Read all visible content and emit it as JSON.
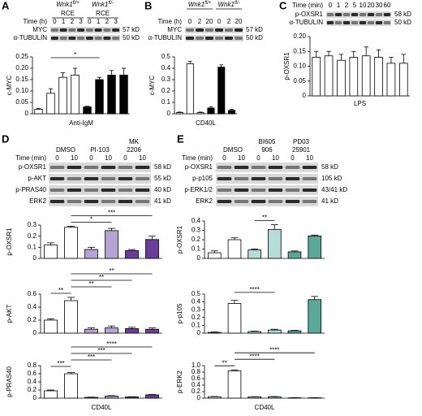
{
  "blots": [
    {
      "letter": "A",
      "genotypes": [
        {
          "gene": "Wnk1",
          "allele": "fl/+"
        },
        {
          "gene": "Wnk1",
          "allele": "fl/-"
        }
      ],
      "rce": [
        "RCE",
        "RCE"
      ],
      "time_label": "Time (h)",
      "times": [
        0,
        1,
        2,
        3,
        0,
        1,
        2,
        3
      ],
      "rows": [
        {
          "name": "MYC",
          "size": "57 kD"
        },
        {
          "name": "α-TUBULIN",
          "size": "50 kD"
        }
      ]
    },
    {
      "letter": "B",
      "genotypes": [
        {
          "gene": "Wnk1",
          "allele": "fl/+"
        },
        {
          "gene": "Wnk1",
          "allele": "fl/-"
        }
      ],
      "time_label": "Time (h)",
      "times": [
        0,
        2,
        20,
        0,
        2,
        20
      ],
      "rows": [
        {
          "name": "MYC",
          "size": "57 kD"
        },
        {
          "name": "α-TUBULIN",
          "size": "50 kD"
        }
      ]
    },
    {
      "letter": "C",
      "time_label": "Time (min)",
      "times": [
        0,
        1,
        2,
        5,
        10,
        20,
        30,
        60
      ],
      "rows": [
        {
          "name": "p-OXSR1",
          "size": "58 kD"
        },
        {
          "name": "α-TUBULIN",
          "size": "50 kD"
        }
      ]
    },
    {
      "letter": "D",
      "treatments": [
        [
          "DMSO"
        ],
        [
          "PI-103"
        ],
        [
          "MK",
          "2206"
        ]
      ],
      "time_label": "Time (min)",
      "times": [
        0,
        10,
        0,
        10,
        0,
        10
      ],
      "rows": [
        {
          "name": "p-OXSR1",
          "size": "58 kD"
        },
        {
          "name": "p-AKT",
          "size": "55 kD"
        },
        {
          "name": "p-PRAS40",
          "size": "40 kD"
        },
        {
          "name": "ERK2",
          "size": "41 kD"
        }
      ]
    },
    {
      "letter": "E",
      "treatments": [
        [
          "DMSO"
        ],
        [
          "BI605",
          "906"
        ],
        [
          "PD03",
          "25901"
        ]
      ],
      "time_label": "Time (min)",
      "times": [
        0,
        10,
        0,
        10,
        0,
        10
      ],
      "rows": [
        {
          "name": "p-OXSR1",
          "size": "58 kD"
        },
        {
          "name": "p-p105",
          "size": "105 kD"
        },
        {
          "name": "p-ERK1/2",
          "size": "43/41 kD"
        },
        {
          "name": "ERK2",
          "size": "41 kD"
        }
      ]
    }
  ],
  "chart_data": [
    {
      "type": "bar",
      "ylabel": "c-MYC",
      "xlabel": "Anti-IgM",
      "ylim": [
        0,
        0.25
      ],
      "yticks": [
        0,
        0.05,
        {
          "value": 0.1,
          "label": "0.10"
        },
        0.15,
        {
          "value": 0.2,
          "label": "0.20"
        },
        0.25
      ],
      "values": [
        0.02,
        0.09,
        0.16,
        0.17,
        0.03,
        0.15,
        0.17,
        0.17
      ],
      "errors": [
        0.003,
        0.02,
        0.02,
        0.03,
        0.003,
        0.01,
        0.02,
        0.03
      ],
      "colors": [
        "#ffffff",
        "#ffffff",
        "#ffffff",
        "#ffffff",
        "#000000",
        "#000000",
        "#000000",
        "#000000"
      ],
      "brackets": [
        {
          "label": "*",
          "from": 1,
          "to": 5
        }
      ]
    },
    {
      "type": "bar",
      "ylabel": "c-MYC",
      "xlabel": "CD40L",
      "ylim": [
        0,
        0.5
      ],
      "yticks": [
        0,
        0.1,
        0.2,
        0.3,
        0.4,
        0.5
      ],
      "values": [
        0.01,
        0.44,
        0.01,
        0.05,
        0.41,
        0.03
      ],
      "errors": [
        0.005,
        0.02,
        0.005,
        0.01,
        0.02,
        0.01
      ],
      "colors": [
        "#ffffff",
        "#ffffff",
        "#ffffff",
        "#000000",
        "#000000",
        "#000000"
      ],
      "brackets": []
    },
    {
      "type": "bar",
      "ylabel": "p-OXSR1",
      "xlabel": "LPS",
      "ylim": [
        0,
        0.2
      ],
      "yticks": [
        0,
        0.05,
        {
          "value": 0.1,
          "label": "0.10"
        },
        0.15,
        {
          "value": 0.2,
          "label": "0.20"
        }
      ],
      "values": [
        0.13,
        0.135,
        0.12,
        0.13,
        0.135,
        0.13,
        0.11,
        0.11
      ],
      "errors": [
        0.02,
        0.015,
        0.02,
        0.02,
        0.03,
        0.025,
        0.02,
        0.03
      ],
      "colors": [
        "#ffffff",
        "#ffffff",
        "#ffffff",
        "#ffffff",
        "#ffffff",
        "#ffffff",
        "#ffffff",
        "#ffffff"
      ],
      "brackets": []
    },
    {
      "type": "bar",
      "ylabel": "p-OXSR1",
      "ylim": [
        0,
        0.3
      ],
      "yticks": [
        0,
        0.1,
        0.2,
        0.3
      ],
      "values": [
        0.12,
        0.28,
        0.08,
        0.25,
        0.07,
        0.17
      ],
      "errors": [
        0.02,
        0.01,
        0.02,
        0.02,
        0.01,
        0.03
      ],
      "colors": [
        "#ffffff",
        "#ffffff",
        "#b3a4d4",
        "#b3a4d4",
        "#6b3d9a",
        "#6b3d9a"
      ],
      "brackets": [
        {
          "label": "***",
          "from": 1,
          "to": 5
        },
        {
          "label": "*",
          "from": 1,
          "to": 3
        }
      ]
    },
    {
      "type": "bar",
      "ylabel": "p-AKT",
      "ylim": [
        0,
        0.6
      ],
      "yticks": [
        0,
        0.2,
        0.4,
        0.6
      ],
      "values": [
        0.2,
        0.5,
        0.06,
        0.08,
        0.07,
        0.06
      ],
      "errors": [
        0.02,
        0.05,
        0.02,
        0.03,
        0.02,
        0.02
      ],
      "colors": [
        "#ffffff",
        "#ffffff",
        "#b3a4d4",
        "#b3a4d4",
        "#6b3d9a",
        "#6b3d9a"
      ],
      "brackets": [
        {
          "label": "**",
          "from": 1,
          "to": 5
        },
        {
          "label": "**",
          "from": 1,
          "to": 4
        },
        {
          "label": "**",
          "from": 1,
          "to": 3
        },
        {
          "label": "**",
          "from": 0,
          "to": 1
        }
      ]
    },
    {
      "type": "bar",
      "ylabel": "p-PRAS40",
      "xlabel": "CD40L",
      "ylim": [
        0,
        0.8
      ],
      "yticks": [
        0,
        0.2,
        0.4,
        0.6,
        0.8
      ],
      "values": [
        0.18,
        0.6,
        0.02,
        0.05,
        0.03,
        0.08
      ],
      "errors": [
        0.02,
        0.03,
        0.005,
        0.01,
        0.005,
        0.01
      ],
      "colors": [
        "#ffffff",
        "#ffffff",
        "#b3a4d4",
        "#b3a4d4",
        "#6b3d9a",
        "#6b3d9a"
      ],
      "brackets": [
        {
          "label": "****",
          "from": 1,
          "to": 5
        },
        {
          "label": "***",
          "from": 1,
          "to": 4
        },
        {
          "label": "***",
          "from": 1,
          "to": 3
        },
        {
          "label": "***",
          "from": 0,
          "to": 1
        }
      ]
    },
    {
      "type": "bar",
      "ylabel": "p-OXSR1",
      "ylim": [
        0,
        0.4
      ],
      "yticks": [
        0,
        0.1,
        0.2,
        0.3,
        0.4
      ],
      "values": [
        0.06,
        0.2,
        0.09,
        0.31,
        0.07,
        0.24
      ],
      "errors": [
        0.02,
        0.02,
        0.01,
        0.05,
        0.01,
        0.01
      ],
      "colors": [
        "#ffffff",
        "#ffffff",
        "#b5ddd5",
        "#b5ddd5",
        "#5aa898",
        "#5aa898"
      ],
      "brackets": [
        {
          "label": "**",
          "from": 2,
          "to": 3
        }
      ]
    },
    {
      "type": "bar",
      "ylabel": "p-p105",
      "ylim": [
        0,
        0.5
      ],
      "yticks": [
        0,
        0.1,
        0.2,
        0.3,
        0.4,
        0.5
      ],
      "values": [
        0.01,
        0.38,
        0.02,
        0.04,
        0.03,
        0.43
      ],
      "errors": [
        0.005,
        0.04,
        0.005,
        0.01,
        0.005,
        0.04
      ],
      "colors": [
        "#ffffff",
        "#ffffff",
        "#b5ddd5",
        "#b5ddd5",
        "#5aa898",
        "#5aa898"
      ],
      "brackets": [
        {
          "label": "****",
          "from": 1,
          "to": 3
        }
      ]
    },
    {
      "type": "bar",
      "ylabel": "p-ERK2",
      "xlabel": "CD40L",
      "ylim": [
        0,
        1
      ],
      "yticks": [
        0,
        0.2,
        0.4,
        0.6,
        0.8,
        {
          "value": 1,
          "label": "1.0"
        }
      ],
      "values": [
        0.04,
        0.84,
        0.04,
        0.04,
        0.01,
        0.01
      ],
      "errors": [
        0.01,
        0.03,
        0.005,
        0.01,
        0.003,
        0.003
      ],
      "colors": [
        "#ffffff",
        "#ffffff",
        "#b5ddd5",
        "#b5ddd5",
        "#5aa898",
        "#5aa898"
      ],
      "brackets": [
        {
          "label": "****",
          "from": 1,
          "to": 5
        },
        {
          "label": "****",
          "from": 1,
          "to": 3
        },
        {
          "label": "**",
          "from": 0,
          "to": 1
        }
      ]
    }
  ]
}
